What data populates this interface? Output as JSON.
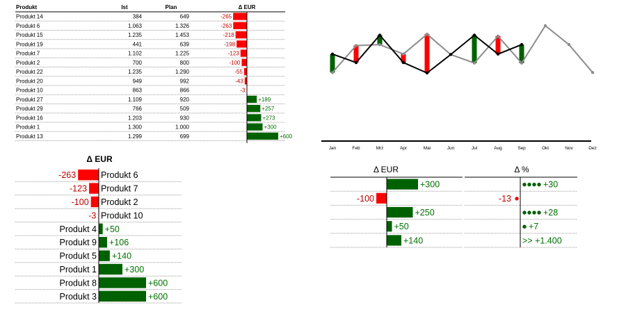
{
  "colors": {
    "pos": "#006100",
    "neg": "#ff0000",
    "neg_text": "#c00000",
    "pos_text": "#007000",
    "actual": "#000000",
    "plan": "#8c8c8c",
    "rule": "#7f7f7f"
  },
  "chart_data": [
    {
      "type": "table",
      "title": "",
      "columns": [
        "Produkt",
        "Ist",
        "Plan",
        "Δ EUR"
      ],
      "rows": [
        {
          "name": "Produkt 14",
          "ist": "384",
          "plan": "649",
          "delta": -265,
          "delta_label": "-265"
        },
        {
          "name": "Produkt 6",
          "ist": "1.063",
          "plan": "1.326",
          "delta": -263,
          "delta_label": "-263"
        },
        {
          "name": "Produkt 15",
          "ist": "1.235",
          "plan": "1.453",
          "delta": -218,
          "delta_label": "-218"
        },
        {
          "name": "Produkt 19",
          "ist": "441",
          "plan": "639",
          "delta": -198,
          "delta_label": "-198"
        },
        {
          "name": "Produkt 7",
          "ist": "1.102",
          "plan": "1.225",
          "delta": -123,
          "delta_label": "-123"
        },
        {
          "name": "Produkt 2",
          "ist": "700",
          "plan": "800",
          "delta": -100,
          "delta_label": "-100"
        },
        {
          "name": "Produkt 22",
          "ist": "1.235",
          "plan": "1.290",
          "delta": -55,
          "delta_label": "-55"
        },
        {
          "name": "Produkt 20",
          "ist": "949",
          "plan": "992",
          "delta": -43,
          "delta_label": "-43"
        },
        {
          "name": "Produkt 10",
          "ist": "863",
          "plan": "866",
          "delta": -3,
          "delta_label": "-3"
        },
        {
          "name": "Produkt 27",
          "ist": "1.109",
          "plan": "920",
          "delta": 189,
          "delta_label": "+189"
        },
        {
          "name": "Produkt 29",
          "ist": "766",
          "plan": "509",
          "delta": 257,
          "delta_label": "+257"
        },
        {
          "name": "Produkt 16",
          "ist": "1.203",
          "plan": "930",
          "delta": 273,
          "delta_label": "+273"
        },
        {
          "name": "Produkt 1",
          "ist": "1.300",
          "plan": "1.000",
          "delta": 300,
          "delta_label": "+300"
        },
        {
          "name": "Produkt 13",
          "ist": "1.299",
          "plan": "699",
          "delta": 600,
          "delta_label": "+600"
        }
      ]
    },
    {
      "type": "line",
      "title": "",
      "categories": [
        "Jan",
        "Feb",
        "Mrz",
        "Apr",
        "Mai",
        "Jun",
        "Jul",
        "Aug",
        "Sep",
        "Okt",
        "Nov",
        "Dez"
      ],
      "series": [
        {
          "role": "actual",
          "values": [
            85,
            103,
            45,
            103,
            125,
            86,
            45,
            85,
            65,
            null,
            null,
            null
          ]
        },
        {
          "role": "plan",
          "values": [
            124,
            67,
            65,
            85,
            43,
            86,
            104,
            47,
            104,
            25,
            65,
            124
          ]
        }
      ],
      "ylim": [
        0,
        160
      ],
      "grid": false
    },
    {
      "type": "bar",
      "title": "Δ EUR",
      "orientation": "horizontal",
      "categories": [
        "Produkt 6",
        "Produkt 7",
        "Produkt 2",
        "Produkt 10",
        "Produkt 4",
        "Produkt 9",
        "Produkt 5",
        "Produkt 1",
        "Produkt 8",
        "Produkt 3"
      ],
      "values": [
        -263,
        -123,
        -100,
        -3,
        50,
        106,
        140,
        300,
        600,
        600
      ],
      "labels": [
        "-263",
        "-123",
        "-100",
        "-3",
        "+50",
        "+106",
        "+140",
        "+300",
        "+600",
        "+600"
      ]
    },
    {
      "type": "bar",
      "title": "Δ EUR",
      "orientation": "horizontal",
      "values": [
        300,
        -100,
        250,
        50,
        140
      ],
      "labels": [
        "+300",
        "-100",
        "+250",
        "+50",
        "+140"
      ]
    },
    {
      "type": "table",
      "title": "Δ %",
      "values": [
        30,
        -13,
        28,
        7,
        1400
      ],
      "labels": [
        "+30",
        "-13",
        "+28",
        "+7",
        ">> +1.400"
      ],
      "dots": [
        4,
        1,
        4,
        1,
        0
      ]
    }
  ]
}
